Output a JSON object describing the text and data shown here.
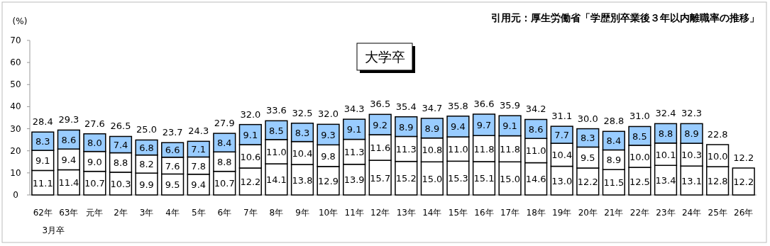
{
  "chart_data": {
    "type": "bar",
    "stacked": true,
    "title": "大学卒",
    "ylabel": "(%)",
    "categories": [
      "62年",
      "63年",
      "元年",
      "2年",
      "3年",
      "4年",
      "5年",
      "6年",
      "7年",
      "8年",
      "9年",
      "10年",
      "11年",
      "12年",
      "13年",
      "14年",
      "15年",
      "16年",
      "17年",
      "18年",
      "19年",
      "20年",
      "21年",
      "22年",
      "23年",
      "24年",
      "25年",
      "26年"
    ],
    "series": [
      {
        "color": "#ffffff",
        "values": [
          11.1,
          11.4,
          10.7,
          10.3,
          9.9,
          9.5,
          9.4,
          10.7,
          12.2,
          14.1,
          13.8,
          12.9,
          13.9,
          15.7,
          15.2,
          15.0,
          15.3,
          15.1,
          15.0,
          14.6,
          13.0,
          12.2,
          11.5,
          12.5,
          13.4,
          13.1,
          12.8,
          12.2
        ],
        "value_labels": [
          "11.1",
          "11.4",
          "10.7",
          "10.3",
          "9.9",
          "9.5",
          "9.4",
          "10.7",
          "12.2",
          "14.1",
          "13.8",
          "12.9",
          "13.9",
          "15.7",
          "15.2",
          "15.0",
          "15.3",
          "15.1",
          "15.0",
          "14.6",
          "13.0",
          "12.2",
          "11.5",
          "12.5",
          "13.4",
          "13.1",
          "12.8",
          "12.2"
        ]
      },
      {
        "color": "#ffffff",
        "values": [
          9.1,
          9.4,
          9.0,
          8.8,
          8.2,
          7.6,
          7.8,
          8.8,
          10.6,
          11.0,
          10.4,
          9.8,
          11.3,
          11.6,
          11.3,
          10.8,
          11.0,
          11.8,
          11.8,
          11.0,
          10.4,
          9.5,
          8.9,
          10.0,
          10.1,
          10.3,
          10.0,
          null
        ],
        "value_labels": [
          "9.1",
          "9.4",
          "9.0",
          "8.8",
          "8.2",
          "7.6",
          "7.8",
          "8.8",
          "10.6",
          "11.0",
          "10.4",
          "9.8",
          "11.3",
          "11.6",
          "11.3",
          "10.8",
          "11.0",
          "11.8",
          "11.8",
          "11.0",
          "10.4",
          "9.5",
          "8.9",
          "10.0",
          "10.1",
          "10.3",
          "10.0",
          null
        ]
      },
      {
        "color": "#99ccff",
        "values": [
          8.3,
          8.6,
          8.0,
          7.4,
          6.8,
          6.6,
          7.1,
          8.4,
          9.1,
          8.5,
          8.3,
          9.3,
          9.1,
          9.2,
          8.9,
          8.9,
          9.4,
          9.7,
          9.1,
          8.6,
          7.7,
          8.3,
          8.4,
          8.5,
          8.8,
          8.9,
          null,
          null
        ],
        "value_labels": [
          "8.3",
          "8.6",
          "8.0",
          "7.4",
          "6.8",
          "6.6",
          "7.1",
          "8.4",
          "9.1",
          "8.5",
          "8.3",
          "9.3",
          "9.1",
          "9.2",
          "8.9",
          "8.9",
          "9.4",
          "9.7",
          "9.1",
          "8.6",
          "7.7",
          "8.3",
          "8.4",
          "8.5",
          "8.8",
          "8.9",
          null,
          null
        ]
      }
    ],
    "totals": [
      "28.4",
      "29.3",
      "27.6",
      "26.5",
      "25.0",
      "23.7",
      "24.3",
      "27.9",
      "32.0",
      "33.6",
      "32.5",
      "32.0",
      "34.3",
      "36.5",
      "35.4",
      "34.7",
      "35.8",
      "36.6",
      "35.9",
      "34.2",
      "31.1",
      "30.0",
      "28.8",
      "31.0",
      "32.4",
      "32.3",
      "22.8",
      "12.2"
    ],
    "ylim": [
      0,
      70
    ],
    "yticks": [
      0,
      10,
      20,
      30,
      40,
      50,
      60,
      70
    ],
    "annotations": [
      "引用元：厚生労働省「学歴別卒業後３年以内離職率の推移」",
      "3月卒"
    ]
  }
}
